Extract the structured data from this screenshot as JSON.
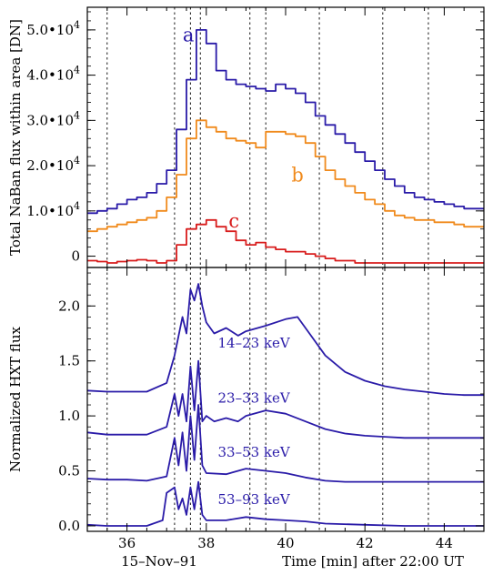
{
  "figure": {
    "date_label": "15–Nov–91",
    "xlabel": "Time [min] after 22:00 UT"
  },
  "chart_data": [
    {
      "type": "line",
      "panel": "top",
      "ylabel": "Total NaBan flux within area [DN]",
      "xlim": [
        35.0,
        45.0
      ],
      "ylim": [
        -2500,
        55000
      ],
      "xticks": [
        36,
        38,
        40,
        42,
        44
      ],
      "xtick_labels": [
        "",
        "",
        "",
        "",
        ""
      ],
      "yticks": [
        0,
        10000,
        20000,
        30000,
        40000,
        50000
      ],
      "ytick_labels": [
        {
          "mantissa": "0",
          "exp": ""
        },
        {
          "mantissa": "1.0•10",
          "exp": "4"
        },
        {
          "mantissa": "2.0•10",
          "exp": "4"
        },
        {
          "mantissa": "3.0•10",
          "exp": "4"
        },
        {
          "mantissa": "4.0•10",
          "exp": "4"
        },
        {
          "mantissa": "5.0•10",
          "exp": "4"
        }
      ],
      "vlines": [
        35.5,
        37.2,
        37.6,
        37.85,
        39.1,
        39.5,
        40.85,
        42.45,
        43.6
      ],
      "series": [
        {
          "name": "a",
          "color": "#2a1ba8",
          "step": true,
          "label_at": [
            37.55,
            47500
          ],
          "x": [
            35.0,
            35.25,
            35.5,
            35.75,
            36.0,
            36.25,
            36.5,
            36.75,
            37.0,
            37.25,
            37.5,
            37.75,
            38.0,
            38.25,
            38.5,
            38.75,
            39.0,
            39.25,
            39.5,
            39.75,
            40.0,
            40.25,
            40.5,
            40.75,
            41.0,
            41.25,
            41.5,
            41.75,
            42.0,
            42.25,
            42.5,
            42.75,
            43.0,
            43.25,
            43.5,
            43.75,
            44.0,
            44.25,
            44.5,
            44.75
          ],
          "values": [
            9500,
            10000,
            10500,
            11500,
            12500,
            13000,
            14000,
            16000,
            19000,
            28000,
            39000,
            50000,
            47000,
            41000,
            39000,
            38000,
            37500,
            37000,
            36500,
            38000,
            37000,
            36000,
            34000,
            31000,
            29000,
            27000,
            25000,
            23000,
            21000,
            19000,
            17000,
            15500,
            14000,
            13000,
            12500,
            12000,
            11500,
            11000,
            10500,
            10500
          ]
        },
        {
          "name": "b",
          "color": "#f08a1c",
          "step": true,
          "label_at": [
            40.3,
            16500
          ],
          "x": [
            35.0,
            35.25,
            35.5,
            35.75,
            36.0,
            36.25,
            36.5,
            36.75,
            37.0,
            37.25,
            37.5,
            37.75,
            38.0,
            38.25,
            38.5,
            38.75,
            39.0,
            39.25,
            39.5,
            39.75,
            40.0,
            40.25,
            40.5,
            40.75,
            41.0,
            41.25,
            41.5,
            41.75,
            42.0,
            42.25,
            42.5,
            42.75,
            43.0,
            43.25,
            43.5,
            43.75,
            44.0,
            44.25,
            44.5,
            44.75
          ],
          "values": [
            5500,
            6000,
            6500,
            7000,
            7500,
            8000,
            8500,
            10000,
            13000,
            18000,
            26000,
            30000,
            28500,
            27500,
            26000,
            25500,
            25000,
            24000,
            27500,
            27500,
            27000,
            26500,
            25000,
            22000,
            19000,
            17000,
            15500,
            14000,
            12500,
            11500,
            10000,
            9000,
            8500,
            8000,
            8000,
            7500,
            7500,
            7000,
            6500,
            6500
          ]
        },
        {
          "name": "c",
          "color": "#d81c1c",
          "step": true,
          "label_at": [
            38.7,
            6300
          ],
          "x": [
            35.0,
            35.25,
            35.5,
            35.75,
            36.0,
            36.25,
            36.5,
            36.75,
            37.0,
            37.25,
            37.5,
            37.75,
            38.0,
            38.25,
            38.5,
            38.75,
            39.0,
            39.25,
            39.5,
            39.75,
            40.0,
            40.25,
            40.5,
            40.75,
            41.0,
            41.25,
            41.5,
            41.75,
            42.0,
            42.25,
            42.5,
            42.75,
            43.0,
            43.25,
            43.5,
            43.75,
            44.0,
            44.25,
            44.5,
            44.75
          ],
          "values": [
            -1000,
            -1200,
            -1500,
            -1200,
            -1000,
            -800,
            -1000,
            -1500,
            -1000,
            2500,
            6000,
            7000,
            8000,
            6500,
            5500,
            3500,
            2500,
            3000,
            2000,
            1500,
            1000,
            1000,
            500,
            0,
            -500,
            -1000,
            -1000,
            -1500,
            -1500,
            -1500,
            -1500,
            -1500,
            -1500,
            -1500,
            -1500,
            -1500,
            -1500,
            -1500,
            -1500,
            -1500
          ]
        }
      ]
    },
    {
      "type": "line",
      "panel": "bottom",
      "ylabel": "Normalized HXT flux",
      "xlim": [
        35.0,
        45.0
      ],
      "ylim": [
        -0.05,
        2.35
      ],
      "xticks": [
        36,
        38,
        40,
        42,
        44
      ],
      "xtick_labels": [
        "36",
        "38",
        "40",
        "42",
        "44"
      ],
      "yticks": [
        0.0,
        0.5,
        1.0,
        1.5,
        2.0
      ],
      "ytick_labels": [
        "0.0",
        "0.5",
        "1.0",
        "1.5",
        "2.0"
      ],
      "vlines": [
        35.5,
        37.2,
        37.6,
        37.85,
        39.1,
        39.5,
        40.85,
        42.45,
        43.6
      ],
      "series": [
        {
          "name": "14–23 keV",
          "color": "#2a1ba8",
          "label_at": [
            39.2,
            1.62
          ],
          "x": [
            35.0,
            35.5,
            36.0,
            36.5,
            37.0,
            37.2,
            37.4,
            37.5,
            37.6,
            37.7,
            37.8,
            37.9,
            38.0,
            38.2,
            38.5,
            38.8,
            39.0,
            39.5,
            40.0,
            40.3,
            40.6,
            41.0,
            41.5,
            42.0,
            42.5,
            43.0,
            43.5,
            44.0,
            44.5,
            45.0
          ],
          "values": [
            1.23,
            1.22,
            1.22,
            1.22,
            1.3,
            1.55,
            1.9,
            1.75,
            2.15,
            2.05,
            2.2,
            2.0,
            1.85,
            1.75,
            1.8,
            1.73,
            1.77,
            1.82,
            1.88,
            1.9,
            1.75,
            1.55,
            1.4,
            1.32,
            1.27,
            1.24,
            1.22,
            1.2,
            1.19,
            1.19
          ]
        },
        {
          "name": "23–33 keV",
          "color": "#2a1ba8",
          "label_at": [
            39.2,
            1.12
          ],
          "x": [
            35.0,
            35.5,
            36.0,
            36.5,
            37.0,
            37.2,
            37.3,
            37.4,
            37.5,
            37.6,
            37.7,
            37.8,
            37.9,
            38.0,
            38.2,
            38.5,
            38.8,
            39.0,
            39.5,
            40.0,
            40.5,
            41.0,
            41.5,
            42.0,
            42.5,
            43.0,
            44.0,
            45.0
          ],
          "values": [
            0.85,
            0.83,
            0.83,
            0.83,
            0.9,
            1.2,
            1.0,
            1.2,
            0.95,
            1.45,
            1.05,
            1.5,
            0.95,
            1.0,
            0.95,
            0.98,
            0.95,
            1.0,
            1.05,
            1.02,
            0.95,
            0.88,
            0.84,
            0.82,
            0.81,
            0.8,
            0.8,
            0.8
          ]
        },
        {
          "name": "33–53 keV",
          "color": "#2a1ba8",
          "label_at": [
            39.2,
            0.63
          ],
          "x": [
            35.0,
            35.5,
            36.0,
            36.5,
            37.0,
            37.2,
            37.3,
            37.4,
            37.5,
            37.6,
            37.7,
            37.8,
            37.9,
            38.0,
            38.5,
            39.0,
            39.5,
            40.0,
            40.5,
            41.0,
            41.5,
            42.0,
            43.0,
            44.0,
            45.0
          ],
          "values": [
            0.43,
            0.42,
            0.42,
            0.41,
            0.45,
            0.8,
            0.55,
            0.85,
            0.5,
            1.0,
            0.6,
            1.1,
            0.55,
            0.48,
            0.47,
            0.52,
            0.5,
            0.48,
            0.44,
            0.41,
            0.4,
            0.4,
            0.4,
            0.4,
            0.4
          ]
        },
        {
          "name": "53–93 keV",
          "color": "#2a1ba8",
          "label_at": [
            39.2,
            0.2
          ],
          "x": [
            35.0,
            35.5,
            36.0,
            36.5,
            36.9,
            37.0,
            37.2,
            37.3,
            37.4,
            37.5,
            37.6,
            37.7,
            37.8,
            37.9,
            38.0,
            38.5,
            39.0,
            39.5,
            40.0,
            40.5,
            41.0,
            42.0,
            43.0,
            44.0,
            45.0
          ],
          "values": [
            0.01,
            0.0,
            0.0,
            0.0,
            0.05,
            0.3,
            0.35,
            0.15,
            0.25,
            0.1,
            0.35,
            0.15,
            0.4,
            0.1,
            0.05,
            0.05,
            0.08,
            0.06,
            0.05,
            0.04,
            0.02,
            0.01,
            0.0,
            0.0,
            0.0
          ]
        }
      ]
    }
  ]
}
